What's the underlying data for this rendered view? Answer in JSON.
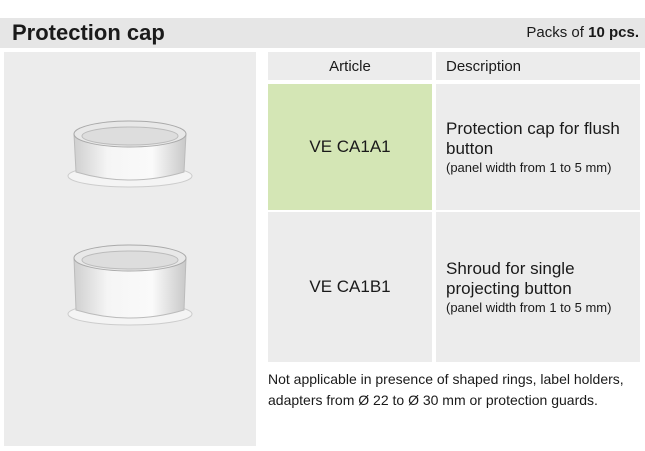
{
  "header": {
    "title": "Protection cap",
    "packs_prefix": "Packs of",
    "packs_count": "10 pcs."
  },
  "table": {
    "columns": [
      "Article",
      "Description"
    ],
    "rows": [
      {
        "article": "VE CA1A1",
        "description": "Protection cap for flush button",
        "detail": "(panel width from 1 to 5 mm)"
      },
      {
        "article": "VE CA1B1",
        "description": "Shroud for single projecting button",
        "detail": "(panel width from 1 to 5 mm)"
      }
    ]
  },
  "note": "Not applicable in presence of shaped rings, label holders, adapters from Ø 22 to Ø 30 mm or protection guards."
}
